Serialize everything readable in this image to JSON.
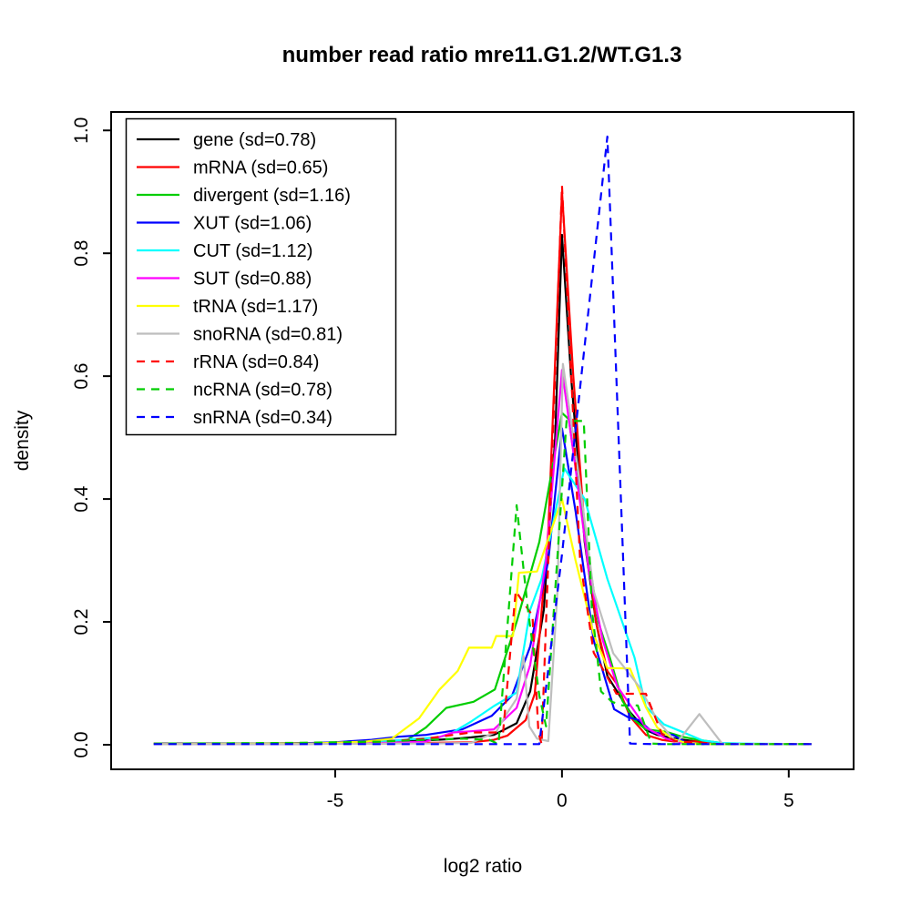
{
  "title": "number read ratio mre11.G1.2/WT.G1.3",
  "chart_data": {
    "type": "line",
    "title": "number read ratio mre11.G1.2/WT.G1.3",
    "xlabel": "log2 ratio",
    "ylabel": "density",
    "xlim": [
      -9.94,
      6.43
    ],
    "ylim": [
      -0.04,
      1.03
    ],
    "x_ticks": [
      -5,
      0,
      5
    ],
    "x_tick_labels": [
      "-5",
      "0",
      "5"
    ],
    "y_ticks": [
      0.0,
      0.2,
      0.4,
      0.6,
      0.8,
      1.0
    ],
    "y_tick_labels": [
      "0.0",
      "0.2",
      "0.4",
      "0.6",
      "0.8",
      "1.0"
    ],
    "grid": false,
    "legend_position": "top-left",
    "frame_color": "#000000",
    "series": [
      {
        "id": "gene",
        "label": "gene (sd=0.78)",
        "color": "#000000",
        "linetype": "solid",
        "points": [
          [
            -9,
            0.002
          ],
          [
            -7,
            0.002
          ],
          [
            -5,
            0.003
          ],
          [
            -4,
            0.005
          ],
          [
            -3,
            0.007
          ],
          [
            -2.5,
            0.009
          ],
          [
            -2,
            0.012
          ],
          [
            -1.5,
            0.016
          ],
          [
            -1,
            0.035
          ],
          [
            -0.7,
            0.087
          ],
          [
            -0.4,
            0.22
          ],
          [
            -0.15,
            0.5
          ],
          [
            0,
            0.83
          ],
          [
            0.2,
            0.6
          ],
          [
            0.5,
            0.33
          ],
          [
            0.75,
            0.2
          ],
          [
            1,
            0.112
          ],
          [
            1.5,
            0.053
          ],
          [
            1.85,
            0.024
          ],
          [
            2.1,
            0.016
          ],
          [
            2.5,
            0.01
          ],
          [
            3,
            0.005
          ],
          [
            3.4,
            0.002
          ],
          [
            4,
            0.001
          ],
          [
            5.5,
            0.001
          ]
        ]
      },
      {
        "id": "mRNA",
        "label": "mRNA (sd=0.65)",
        "color": "#FF0000",
        "linetype": "solid",
        "points": [
          [
            -9,
            0.001
          ],
          [
            -6,
            0.001
          ],
          [
            -5,
            0.002
          ],
          [
            -4,
            0.002
          ],
          [
            -3,
            0.003
          ],
          [
            -2,
            0.004
          ],
          [
            -1.5,
            0.008
          ],
          [
            -1.2,
            0.015
          ],
          [
            -0.8,
            0.04
          ],
          [
            -0.6,
            0.083
          ],
          [
            -0.3,
            0.35
          ],
          [
            0,
            0.9
          ],
          [
            0.25,
            0.6
          ],
          [
            0.5,
            0.35
          ],
          [
            0.75,
            0.2
          ],
          [
            1,
            0.12
          ],
          [
            1.2,
            0.1
          ],
          [
            1.5,
            0.046
          ],
          [
            1.85,
            0.016
          ],
          [
            2.2,
            0.008
          ],
          [
            2.6,
            0.004
          ],
          [
            3,
            0.006
          ],
          [
            3.4,
            0.002
          ],
          [
            4,
            0.001
          ],
          [
            5.5,
            0.001
          ]
        ]
      },
      {
        "id": "divergent",
        "label": "divergent (sd=1.16)",
        "color": "#00CD00",
        "linetype": "solid",
        "points": [
          [
            -9,
            0.001
          ],
          [
            -6,
            0.002
          ],
          [
            -5,
            0.002
          ],
          [
            -4,
            0.004
          ],
          [
            -3.45,
            0.006
          ],
          [
            -3,
            0.028
          ],
          [
            -2.55,
            0.06
          ],
          [
            -1.95,
            0.07
          ],
          [
            -1.48,
            0.09
          ],
          [
            -1,
            0.2
          ],
          [
            -0.5,
            0.33
          ],
          [
            0,
            0.54
          ],
          [
            0.15,
            0.53
          ],
          [
            0.5,
            0.35
          ],
          [
            0.8,
            0.2
          ],
          [
            1.05,
            0.143
          ],
          [
            1.33,
            0.072
          ],
          [
            1.6,
            0.04
          ],
          [
            1.85,
            0.025
          ],
          [
            2.3,
            0.021
          ],
          [
            2.65,
            0.013
          ],
          [
            3,
            0.008
          ],
          [
            3.5,
            0.003
          ],
          [
            4,
            0.001
          ],
          [
            5.5,
            0.001
          ]
        ]
      },
      {
        "id": "XUT",
        "label": "XUT (sd=1.06)",
        "color": "#0000FF",
        "linetype": "solid",
        "points": [
          [
            -9,
            0.001
          ],
          [
            -6,
            0.002
          ],
          [
            -5,
            0.004
          ],
          [
            -4.2,
            0.008
          ],
          [
            -3.6,
            0.013
          ],
          [
            -3,
            0.016
          ],
          [
            -2.2,
            0.025
          ],
          [
            -1.55,
            0.047
          ],
          [
            -1.1,
            0.08
          ],
          [
            -0.7,
            0.16
          ],
          [
            -0.3,
            0.3
          ],
          [
            0,
            0.515
          ],
          [
            0.3,
            0.38
          ],
          [
            0.7,
            0.17
          ],
          [
            1.15,
            0.058
          ],
          [
            1.45,
            0.045
          ],
          [
            1.7,
            0.04
          ],
          [
            2,
            0.02
          ],
          [
            2.45,
            0.016
          ],
          [
            2.7,
            0.005
          ],
          [
            3,
            0.002
          ],
          [
            3.5,
            0.001
          ],
          [
            5.5,
            0.001
          ]
        ]
      },
      {
        "id": "CUT",
        "label": "CUT (sd=1.12)",
        "color": "#00FFFF",
        "linetype": "solid",
        "points": [
          [
            -9,
            0.001
          ],
          [
            -6,
            0.001
          ],
          [
            -5,
            0.002
          ],
          [
            -4.3,
            0.004
          ],
          [
            -3.5,
            0.008
          ],
          [
            -2.75,
            0.012
          ],
          [
            -2.5,
            0.016
          ],
          [
            -2,
            0.038
          ],
          [
            -1.5,
            0.063
          ],
          [
            -1,
            0.085
          ],
          [
            -0.7,
            0.22
          ],
          [
            -0.45,
            0.27
          ],
          [
            0.05,
            0.45
          ],
          [
            0.5,
            0.4
          ],
          [
            1,
            0.27
          ],
          [
            1.6,
            0.142
          ],
          [
            1.85,
            0.062
          ],
          [
            2.25,
            0.033
          ],
          [
            2.65,
            0.021
          ],
          [
            3.1,
            0.007
          ],
          [
            3.5,
            0.003
          ],
          [
            4,
            0.002
          ],
          [
            5.5,
            0.001
          ]
        ]
      },
      {
        "id": "SUT",
        "label": "SUT (sd=0.88)",
        "color": "#FF00FF",
        "linetype": "solid",
        "points": [
          [
            -9,
            0.001
          ],
          [
            -6,
            0.001
          ],
          [
            -5,
            0.002
          ],
          [
            -4,
            0.003
          ],
          [
            -3,
            0.005
          ],
          [
            -2.4,
            0.02
          ],
          [
            -2,
            0.022
          ],
          [
            -1.5,
            0.025
          ],
          [
            -1,
            0.06
          ],
          [
            -0.7,
            0.13
          ],
          [
            -0.35,
            0.3
          ],
          [
            0,
            0.61
          ],
          [
            0.3,
            0.45
          ],
          [
            0.6,
            0.28
          ],
          [
            0.9,
            0.17
          ],
          [
            1.22,
            0.095
          ],
          [
            1.5,
            0.065
          ],
          [
            1.85,
            0.028
          ],
          [
            2.3,
            0.01
          ],
          [
            2.6,
            0.004
          ],
          [
            3,
            0.002
          ],
          [
            3.5,
            0.001
          ],
          [
            5.5,
            0.001
          ]
        ]
      },
      {
        "id": "tRNA",
        "label": "tRNA (sd=1.17)",
        "color": "#FFFF00",
        "linetype": "solid",
        "points": [
          [
            -9,
            0.001
          ],
          [
            -6,
            0.002
          ],
          [
            -5.5,
            0.002
          ],
          [
            -4.8,
            0.004
          ],
          [
            -4.35,
            0.005
          ],
          [
            -3.75,
            0.01
          ],
          [
            -3.15,
            0.043
          ],
          [
            -2.7,
            0.09
          ],
          [
            -2.3,
            0.12
          ],
          [
            -2.05,
            0.158
          ],
          [
            -1.55,
            0.158
          ],
          [
            -1.45,
            0.177
          ],
          [
            -1.08,
            0.177
          ],
          [
            -0.95,
            0.28
          ],
          [
            -0.55,
            0.282
          ],
          [
            0,
            0.4
          ],
          [
            0.3,
            0.3
          ],
          [
            0.7,
            0.18
          ],
          [
            1,
            0.125
          ],
          [
            1.5,
            0.124
          ],
          [
            1.85,
            0.061
          ],
          [
            2.1,
            0.028
          ],
          [
            2.45,
            0.009
          ],
          [
            2.75,
            0.003
          ],
          [
            3.2,
            0.001
          ],
          [
            5.5,
            0.001
          ]
        ]
      },
      {
        "id": "snoRNA",
        "label": "snoRNA (sd=0.81)",
        "color": "#BEBEBE",
        "linetype": "solid",
        "points": [
          [
            -9,
            0.001
          ],
          [
            -6,
            0.001
          ],
          [
            -4,
            0.002
          ],
          [
            -3,
            0.002
          ],
          [
            -2,
            0.003
          ],
          [
            -1.45,
            0.021
          ],
          [
            -1.25,
            0.047
          ],
          [
            -1,
            0.075
          ],
          [
            -0.85,
            0.145
          ],
          [
            -0.72,
            0.03
          ],
          [
            -0.55,
            0.01
          ],
          [
            -0.3,
            0.006
          ],
          [
            -0.1,
            0.25
          ],
          [
            0.02,
            0.62
          ],
          [
            0.35,
            0.45
          ],
          [
            0.7,
            0.25
          ],
          [
            1.13,
            0.149
          ],
          [
            1.73,
            0.092
          ],
          [
            2.1,
            0.04
          ],
          [
            2.53,
            0.003
          ],
          [
            3.03,
            0.05
          ],
          [
            3.53,
            0.002
          ],
          [
            4,
            0.001
          ],
          [
            5.5,
            0.001
          ]
        ]
      },
      {
        "id": "rRNA",
        "label": "rRNA (sd=0.84)",
        "color": "#FF0000",
        "linetype": "dashed",
        "points": [
          [
            -9,
            0.002
          ],
          [
            -6,
            0.002
          ],
          [
            -4.5,
            0.004
          ],
          [
            -4,
            0.005
          ],
          [
            -3,
            0.01
          ],
          [
            -2,
            0.02
          ],
          [
            -1.3,
            0.02
          ],
          [
            -1.02,
            0.25
          ],
          [
            -0.65,
            0.21
          ],
          [
            -0.52,
            0.02
          ],
          [
            -0.45,
            0.001
          ],
          [
            0,
            0.91
          ],
          [
            0.4,
            0.3
          ],
          [
            0.7,
            0.15
          ],
          [
            1,
            0.11
          ],
          [
            1.2,
            0.083
          ],
          [
            1.85,
            0.083
          ],
          [
            2.2,
            0.018
          ],
          [
            2.5,
            0.006
          ],
          [
            3,
            0.003
          ],
          [
            3.5,
            0.001
          ],
          [
            5.5,
            0.001
          ]
        ]
      },
      {
        "id": "ncRNA",
        "label": "ncRNA (sd=0.78)",
        "color": "#00CD00",
        "linetype": "dashed",
        "points": [
          [
            -9,
            0.002
          ],
          [
            -6,
            0.003
          ],
          [
            -4,
            0.005
          ],
          [
            -3,
            0.008
          ],
          [
            -2.2,
            0.01
          ],
          [
            -1.6,
            0.008
          ],
          [
            -1.4,
            0.001
          ],
          [
            -1,
            0.39
          ],
          [
            -0.75,
            0.22
          ],
          [
            -0.5,
            0.08
          ],
          [
            -0.35,
            0.03
          ],
          [
            0.1,
            0.527
          ],
          [
            0.48,
            0.527
          ],
          [
            0.66,
            0.22
          ],
          [
            0.76,
            0.157
          ],
          [
            0.86,
            0.087
          ],
          [
            1.1,
            0.07
          ],
          [
            1.33,
            0.064
          ],
          [
            1.67,
            0.064
          ],
          [
            1.97,
            0.002
          ],
          [
            2.3,
            0.001
          ],
          [
            5.5,
            0.001
          ]
        ]
      },
      {
        "id": "snRNA",
        "label": "snRNA (sd=0.34)",
        "color": "#0000FF",
        "linetype": "dashed",
        "points": [
          [
            -9,
            0.001
          ],
          [
            -4,
            0.001
          ],
          [
            -2,
            0.001
          ],
          [
            -0.5,
            0.001
          ],
          [
            0,
            0.31
          ],
          [
            0.5,
            0.65
          ],
          [
            1,
            0.99
          ],
          [
            1.5,
            0.002
          ],
          [
            2,
            0.001
          ],
          [
            5.5,
            0.001
          ]
        ]
      }
    ]
  }
}
